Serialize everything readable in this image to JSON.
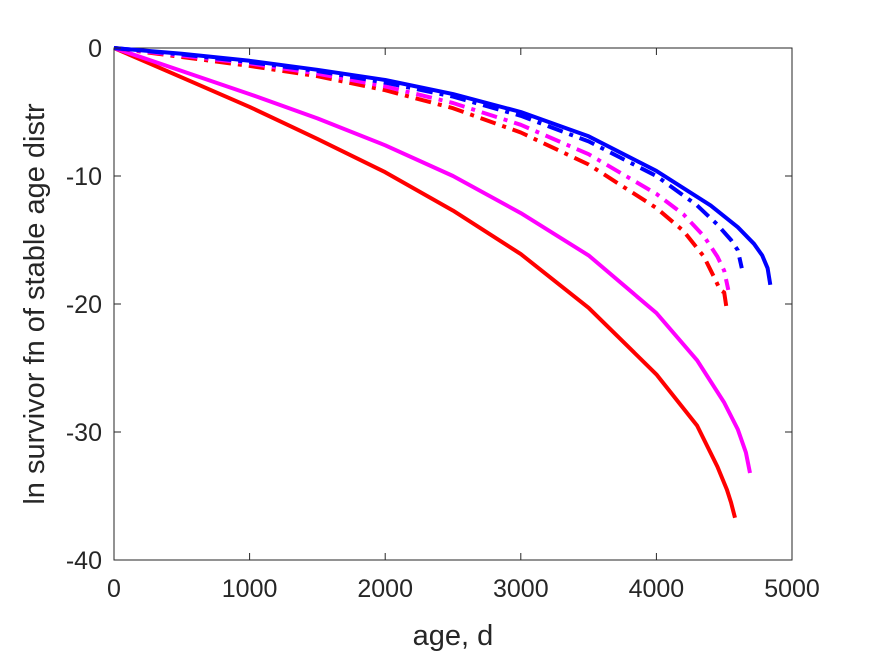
{
  "chart_data": {
    "type": "line",
    "title": "",
    "xlabel": "age, d",
    "ylabel": "ln survivor fn of stable age distr",
    "xlim": [
      0,
      5000
    ],
    "ylim": [
      -40,
      0
    ],
    "xticks": [
      0,
      1000,
      2000,
      3000,
      4000,
      5000
    ],
    "yticks": [
      0,
      -10,
      -20,
      -30,
      -40
    ],
    "xtick_labels": [
      "0",
      "1000",
      "2000",
      "3000",
      "4000",
      "5000"
    ],
    "ytick_labels": [
      "0",
      "-10",
      "-20",
      "-30",
      "-40"
    ],
    "grid": false,
    "legend": "none",
    "series": [
      {
        "color": "#ff0000",
        "style": "solid",
        "x": [
          0,
          500,
          1000,
          1500,
          2000,
          2500,
          3000,
          3500,
          4000,
          4300,
          4450,
          4520,
          4550,
          4580
        ],
        "y": [
          0,
          -2.3,
          -4.6,
          -7.1,
          -9.7,
          -12.7,
          -16.1,
          -20.3,
          -25.5,
          -29.5,
          -32.7,
          -34.5,
          -35.5,
          -36.7
        ]
      },
      {
        "color": "#ff00ff",
        "style": "solid",
        "x": [
          0,
          500,
          1000,
          1500,
          2000,
          2500,
          3000,
          3500,
          4000,
          4300,
          4500,
          4600,
          4660,
          4690
        ],
        "y": [
          0,
          -1.8,
          -3.6,
          -5.5,
          -7.6,
          -10.0,
          -12.9,
          -16.2,
          -20.7,
          -24.4,
          -27.7,
          -29.8,
          -31.6,
          -33.2
        ]
      },
      {
        "color": "#ff0000",
        "style": "dashdot",
        "x": [
          0,
          500,
          1000,
          1500,
          2000,
          2500,
          3000,
          3500,
          4000,
          4200,
          4350,
          4430,
          4470,
          4500,
          4520
        ],
        "y": [
          0,
          -0.7,
          -1.4,
          -2.2,
          -3.3,
          -4.7,
          -6.6,
          -9.1,
          -12.5,
          -14.3,
          -16.3,
          -18.0,
          -18.9,
          -19.1,
          -20.5
        ]
      },
      {
        "color": "#ff00ff",
        "style": "dashdot",
        "x": [
          0,
          500,
          1000,
          1500,
          2000,
          2500,
          3000,
          3500,
          4000,
          4200,
          4350,
          4450,
          4500,
          4530
        ],
        "y": [
          0,
          -0.6,
          -1.2,
          -2.0,
          -3.0,
          -4.3,
          -6.0,
          -8.3,
          -11.4,
          -13.0,
          -14.7,
          -16.3,
          -17.4,
          -18.9
        ]
      },
      {
        "color": "#0000ff",
        "style": "dashdot",
        "x": [
          0,
          500,
          1000,
          1500,
          2000,
          2500,
          3000,
          3500,
          4000,
          4300,
          4450,
          4550,
          4600,
          4630
        ],
        "y": [
          0,
          -0.5,
          -1.1,
          -1.8,
          -2.7,
          -3.8,
          -5.3,
          -7.3,
          -10.0,
          -12.3,
          -13.8,
          -15.0,
          -15.8,
          -17.2
        ]
      },
      {
        "color": "#0000ff",
        "style": "solid",
        "x": [
          0,
          500,
          1000,
          1500,
          2000,
          2500,
          3000,
          3500,
          4000,
          4400,
          4600,
          4720,
          4780,
          4820,
          4840
        ],
        "y": [
          0,
          -0.45,
          -1.0,
          -1.7,
          -2.5,
          -3.6,
          -5.0,
          -6.9,
          -9.6,
          -12.3,
          -14.0,
          -15.3,
          -16.2,
          -17.2,
          -18.5
        ]
      }
    ]
  }
}
